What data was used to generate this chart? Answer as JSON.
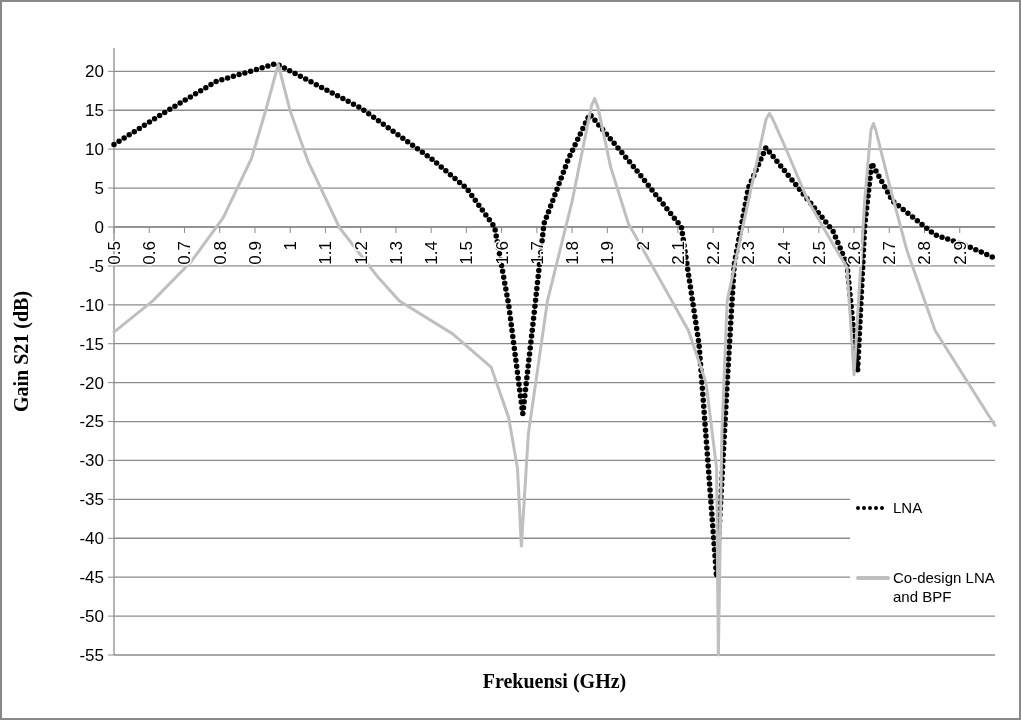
{
  "chart_data": {
    "type": "line",
    "xlabel": "Frekuensi (GHz)",
    "ylabel": "Gain S21 (dB)",
    "xlim": [
      0.5,
      3.0
    ],
    "xticks": [
      0.5,
      0.6,
      0.7,
      0.8,
      0.9,
      1,
      1.1,
      1.2,
      1.3,
      1.4,
      1.5,
      1.6,
      1.7,
      1.8,
      1.9,
      2,
      2.1,
      2.2,
      2.3,
      2.4,
      2.5,
      2.6,
      2.7,
      2.8,
      2.9
    ],
    "ylim": [
      -55,
      23
    ],
    "yticks": [
      -55,
      -50,
      -45,
      -40,
      -35,
      -30,
      -25,
      -20,
      -15,
      -10,
      -5,
      0,
      5,
      10,
      15,
      20
    ],
    "grid": "y",
    "legend": "bottom right",
    "series": [
      {
        "name": "LNA",
        "color": "#000000",
        "line_style": "dotted",
        "x": [
          0.5,
          0.65,
          0.79,
          0.96,
          1.2,
          1.4,
          1.5,
          1.58,
          1.62,
          1.66,
          1.69,
          1.72,
          1.79,
          1.85,
          1.97,
          2.11,
          2.16,
          2.21,
          2.24,
          2.26,
          2.3,
          2.35,
          2.43,
          2.54,
          2.58,
          2.61,
          2.63,
          2.65,
          2.71,
          2.83,
          2.92,
          3.0
        ],
        "values": [
          10.6,
          14.9,
          18.7,
          21,
          15.3,
          8.8,
          5,
          0,
          -10,
          -24,
          -12,
          0.4,
          8.8,
          14.5,
          8,
          0,
          -15,
          -45,
          -20,
          -4.8,
          5,
          10.2,
          5.7,
          -0.5,
          -4.8,
          -18.5,
          0,
          8.2,
          3.3,
          -1,
          -2.4,
          -4
        ]
      },
      {
        "name": "Co-design LNA and BPF",
        "color": "#bfbfbf",
        "line_style": "solid",
        "x": [
          0.5,
          0.61,
          0.72,
          0.81,
          0.89,
          0.93,
          0.966,
          1.0,
          1.05,
          1.14,
          1.25,
          1.31,
          1.46,
          1.57,
          1.62,
          1.645,
          1.656,
          1.676,
          1.73,
          1.8,
          1.855,
          1.864,
          1.873,
          1.91,
          1.96,
          2.02,
          2.13,
          2.18,
          2.21,
          2.215,
          2.225,
          2.24,
          2.28,
          2.35,
          2.36,
          2.37,
          2.41,
          2.47,
          2.54,
          2.58,
          2.6,
          2.63,
          2.648,
          2.655,
          2.662,
          2.7,
          2.75,
          2.83,
          3.0
        ],
        "values": [
          -13.5,
          -9.5,
          -4.4,
          1.2,
          8.8,
          14.9,
          20.9,
          14.9,
          8.5,
          -0.1,
          -6.5,
          -9.5,
          -13.7,
          -18,
          -24.5,
          -31,
          -41,
          -26.5,
          -9.5,
          3.3,
          15.6,
          16.5,
          15.4,
          7.6,
          0.4,
          -4.4,
          -13.3,
          -20,
          -31,
          -55,
          -26.5,
          -9.5,
          -0.9,
          13.8,
          14.6,
          13.8,
          9.7,
          3.3,
          -2.2,
          -5.2,
          -19,
          3.3,
          12.5,
          13.3,
          12.4,
          5.5,
          -3,
          -13.3,
          -25.5
        ]
      }
    ]
  }
}
